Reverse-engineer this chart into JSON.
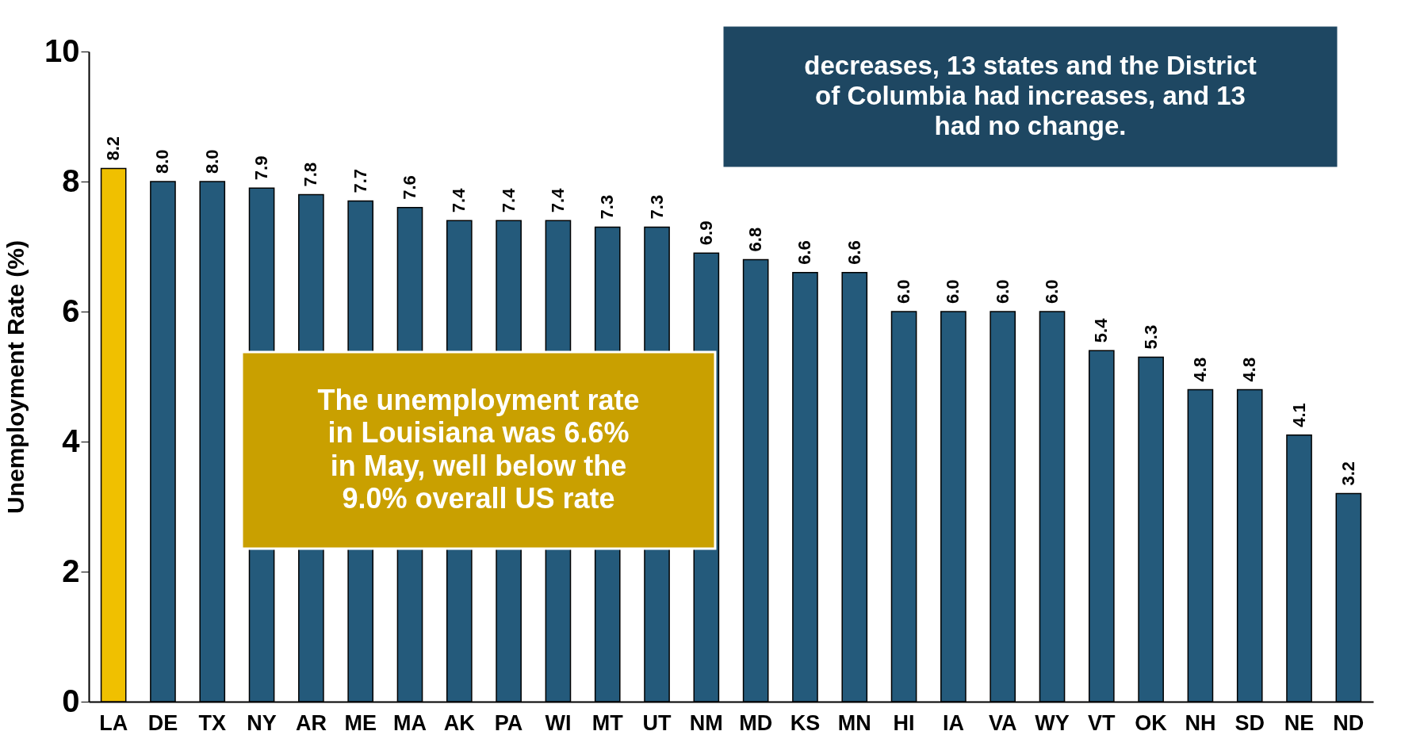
{
  "chart_data": {
    "type": "bar",
    "ylabel": "Unemployment Rate (%)",
    "categories": [
      "LA",
      "DE",
      "TX",
      "NY",
      "AR",
      "ME",
      "MA",
      "AK",
      "PA",
      "WI",
      "MT",
      "UT",
      "NM",
      "MD",
      "KS",
      "MN",
      "HI",
      "IA",
      "VA",
      "WY",
      "VT",
      "OK",
      "NH",
      "SD",
      "NE",
      "ND"
    ],
    "values": [
      8.2,
      8.0,
      8.0,
      7.9,
      7.8,
      7.7,
      7.6,
      7.4,
      7.4,
      7.4,
      7.3,
      7.3,
      6.9,
      6.8,
      6.6,
      6.6,
      6.0,
      6.0,
      6.0,
      6.0,
      5.4,
      5.3,
      4.8,
      4.8,
      4.1,
      3.2
    ],
    "colors": [
      "#f0c000",
      "#245a7b",
      "#245a7b",
      "#245a7b",
      "#245a7b",
      "#245a7b",
      "#245a7b",
      "#245a7b",
      "#245a7b",
      "#245a7b",
      "#245a7b",
      "#245a7b",
      "#245a7b",
      "#245a7b",
      "#245a7b",
      "#245a7b",
      "#245a7b",
      "#245a7b",
      "#245a7b",
      "#245a7b",
      "#245a7b",
      "#245a7b",
      "#245a7b",
      "#245a7b",
      "#245a7b",
      "#245a7b"
    ],
    "value_labels": [
      "8.2",
      "8.0",
      "8.0",
      "7.9",
      "7.8",
      "7.7",
      "7.6",
      "7.4",
      "7.4",
      "7.4",
      "7.3",
      "7.3",
      "6.9",
      "6.8",
      "6.6",
      "6.6",
      "6.0",
      "6.0",
      "6.0",
      "6.0",
      "5.4",
      "5.3",
      "4.8",
      "4.8",
      "4.1",
      "3.2"
    ],
    "ylim": [
      0,
      10
    ],
    "yticks": [
      0,
      2,
      4,
      6,
      8,
      10
    ],
    "grid": false,
    "annotations": [
      "The unemployment rate\nin Louisiana was 6.6%\nin May, well below the\n9.0% overall US rate",
      "decreases, 13 states and the District\nof Columbia had increases, and 13\nhad no change."
    ]
  }
}
